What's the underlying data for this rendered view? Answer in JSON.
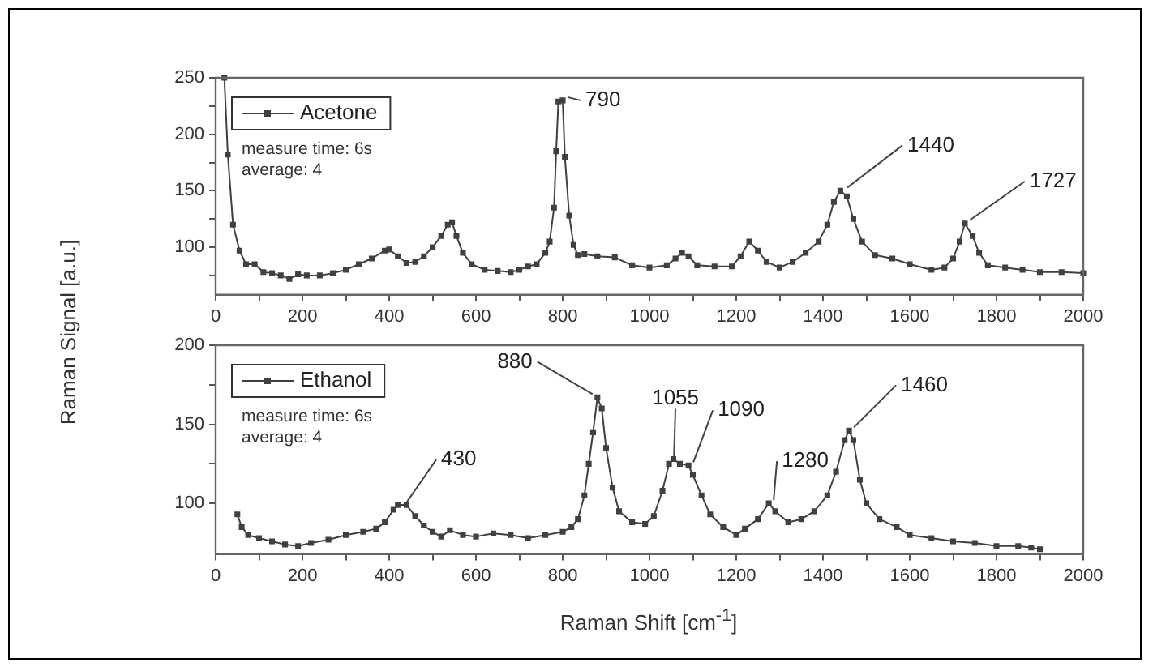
{
  "chart_data": [
    {
      "type": "line",
      "ylabel": "Raman Signal [a.u.]",
      "xlim": [
        0,
        2000
      ],
      "ylim": [
        58,
        250
      ],
      "xticks": [
        0,
        {
          "value": 100,
          "label": null
        },
        200,
        {
          "value": 300,
          "label": null
        },
        400,
        {
          "value": 500,
          "label": null
        },
        600,
        {
          "value": 700,
          "label": null
        },
        800,
        {
          "value": 900,
          "label": null
        },
        1000,
        {
          "value": 1100,
          "label": null
        },
        1200,
        {
          "value": 1300,
          "label": null
        },
        1400,
        {
          "value": 1500,
          "label": null
        },
        1600,
        {
          "value": 1700,
          "label": null
        },
        1800,
        {
          "value": 1900,
          "label": null
        },
        2000
      ],
      "yticks": [
        {
          "value": 75,
          "label": null
        },
        100,
        {
          "value": 125,
          "label": null
        },
        150,
        {
          "value": 175,
          "label": null
        },
        200,
        {
          "value": 225,
          "label": null
        },
        250
      ],
      "x": [
        20,
        28,
        40,
        55,
        70,
        90,
        110,
        130,
        150,
        170,
        190,
        210,
        240,
        270,
        300,
        330,
        360,
        390,
        400,
        420,
        440,
        460,
        480,
        500,
        520,
        535,
        545,
        555,
        570,
        590,
        620,
        650,
        680,
        700,
        720,
        740,
        760,
        770,
        780,
        785,
        790,
        800,
        805,
        815,
        825,
        835,
        850,
        880,
        920,
        960,
        1000,
        1040,
        1060,
        1075,
        1090,
        1110,
        1150,
        1190,
        1210,
        1230,
        1250,
        1270,
        1300,
        1330,
        1360,
        1390,
        1410,
        1425,
        1440,
        1455,
        1470,
        1490,
        1520,
        1560,
        1600,
        1650,
        1680,
        1700,
        1715,
        1727,
        1745,
        1760,
        1780,
        1820,
        1860,
        1900,
        1950,
        2000
      ],
      "series": [
        {
          "name": "Acetone",
          "color": "#404040",
          "values": [
            250,
            182,
            120,
            97,
            85,
            85,
            78,
            77,
            75,
            72,
            76,
            75,
            75,
            77,
            80,
            85,
            90,
            97,
            98,
            92,
            86,
            87,
            92,
            100,
            110,
            120,
            122,
            110,
            95,
            85,
            80,
            79,
            78,
            80,
            83,
            85,
            95,
            105,
            135,
            185,
            229,
            230,
            180,
            128,
            102,
            93,
            94,
            92,
            91,
            84,
            82,
            84,
            90,
            95,
            92,
            84,
            83,
            83,
            92,
            105,
            97,
            87,
            82,
            87,
            95,
            105,
            120,
            140,
            150,
            145,
            125,
            105,
            93,
            90,
            85,
            80,
            82,
            90,
            105,
            121,
            110,
            95,
            84,
            82,
            80,
            78,
            78,
            77
          ]
        }
      ],
      "marker": "square",
      "line_style": "solid",
      "grid": false,
      "legend": "top left",
      "annotations": [
        "measure time: 6s",
        "average: 4",
        {
          "text": "790",
          "x": 800,
          "y": 230
        },
        {
          "text": "1440",
          "x": 1445,
          "y": 150
        },
        {
          "text": "1727",
          "x": 1727,
          "y": 121
        }
      ]
    },
    {
      "type": "line",
      "xlabel": "Raman Shift [cm$^{-1}$]",
      "xlim": [
        0,
        2000
      ],
      "ylim": [
        68,
        200
      ],
      "xticks": [
        0,
        {
          "value": 100,
          "label": null
        },
        200,
        {
          "value": 300,
          "label": null
        },
        400,
        {
          "value": 500,
          "label": null
        },
        600,
        {
          "value": 700,
          "label": null
        },
        800,
        {
          "value": 900,
          "label": null
        },
        1000,
        {
          "value": 1100,
          "label": null
        },
        1200,
        {
          "value": 1300,
          "label": null
        },
        1400,
        {
          "value": 1500,
          "label": null
        },
        1600,
        {
          "value": 1700,
          "label": null
        },
        1800,
        {
          "value": 1900,
          "label": null
        },
        2000
      ],
      "yticks": [
        100,
        {
          "value": 125,
          "label": null
        },
        150,
        {
          "value": 175,
          "label": null
        },
        200
      ],
      "x": [
        50,
        60,
        75,
        100,
        130,
        160,
        190,
        220,
        260,
        300,
        340,
        370,
        390,
        410,
        420,
        440,
        460,
        480,
        500,
        520,
        540,
        570,
        600,
        640,
        680,
        720,
        760,
        800,
        820,
        835,
        850,
        860,
        870,
        880,
        890,
        900,
        915,
        930,
        960,
        990,
        1010,
        1030,
        1045,
        1055,
        1070,
        1090,
        1100,
        1120,
        1140,
        1170,
        1200,
        1220,
        1250,
        1275,
        1290,
        1320,
        1350,
        1380,
        1410,
        1430,
        1450,
        1460,
        1470,
        1485,
        1500,
        1530,
        1570,
        1600,
        1650,
        1700,
        1750,
        1800,
        1850,
        1880,
        1900
      ],
      "series": [
        {
          "name": "Ethanol",
          "color": "#404040",
          "values": [
            93,
            85,
            80,
            78,
            76,
            74,
            73,
            75,
            77,
            80,
            82,
            84,
            88,
            96,
            99,
            99,
            92,
            86,
            82,
            79,
            83,
            80,
            79,
            81,
            80,
            78,
            80,
            82,
            85,
            90,
            105,
            125,
            145,
            167,
            160,
            135,
            110,
            95,
            88,
            87,
            92,
            108,
            125,
            128,
            125,
            124,
            118,
            105,
            93,
            85,
            80,
            84,
            90,
            100,
            95,
            88,
            90,
            95,
            105,
            120,
            140,
            146,
            140,
            115,
            100,
            90,
            85,
            80,
            78,
            76,
            75,
            73,
            73,
            72,
            71
          ]
        }
      ],
      "marker": "square",
      "line_style": "solid",
      "grid": false,
      "legend": "top left",
      "annotations": [
        "measure time: 6s",
        "average: 4",
        {
          "text": "430",
          "x": 430,
          "y": 99
        },
        {
          "text": "880",
          "x": 880,
          "y": 167
        },
        {
          "text": "1055",
          "x": 1045,
          "y": 125
        },
        {
          "text": "1090",
          "x": 1090,
          "y": 124
        },
        {
          "text": "1280",
          "x": 1275,
          "y": 100
        },
        {
          "text": "1460",
          "x": 1460,
          "y": 146
        }
      ]
    }
  ]
}
